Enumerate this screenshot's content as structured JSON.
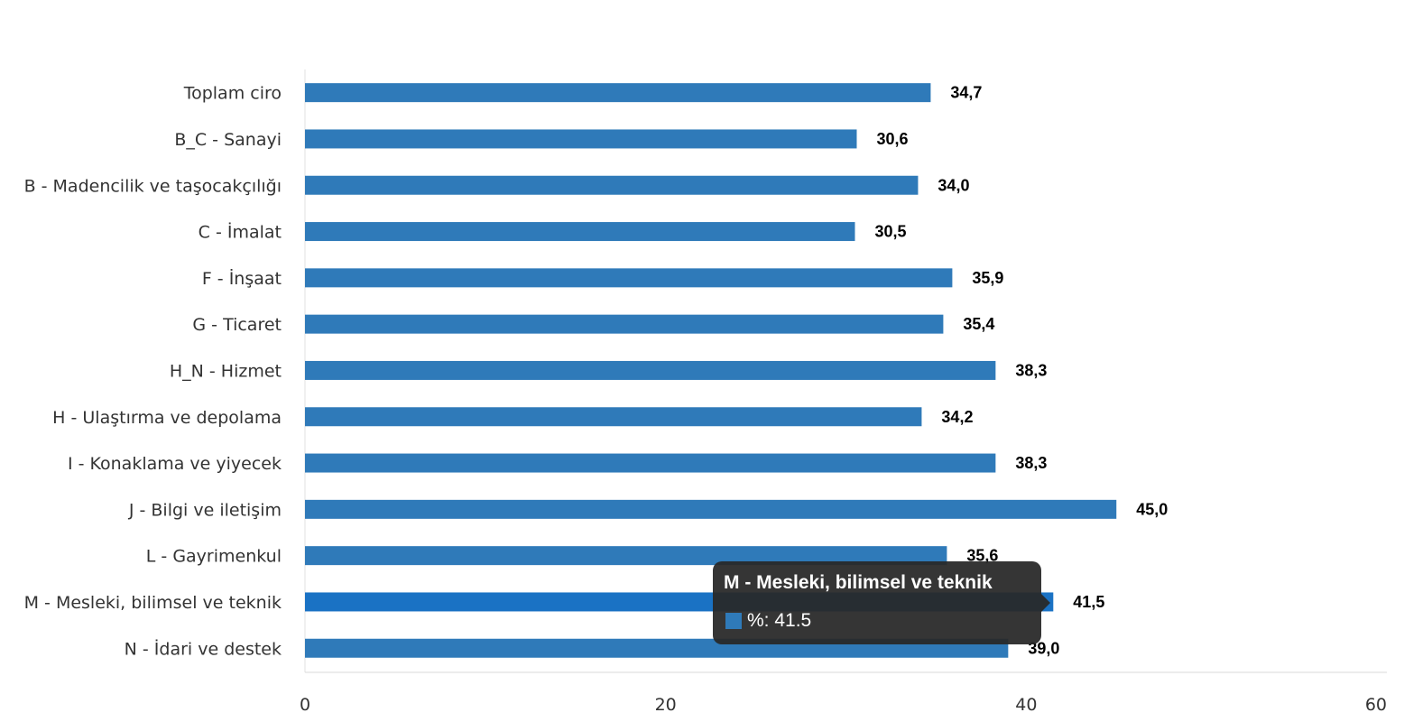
{
  "chart_data": {
    "type": "bar",
    "orientation": "horizontal",
    "categories": [
      "Toplam ciro",
      "B_C - Sanayi",
      "B - Madencilik ve taşocakçılığı",
      "C - İmalat",
      "F - İnşaat",
      "G - Ticaret",
      "H_N - Hizmet",
      "H - Ulaştırma ve depolama",
      "I - Konaklama ve yiyecek",
      "J - Bilgi ve iletişim",
      "L - Gayrimenkul",
      "M - Mesleki, bilimsel ve teknik",
      "N - İdari ve destek"
    ],
    "series": [
      {
        "name": "%",
        "values": [
          34.7,
          30.6,
          34.0,
          30.5,
          35.9,
          35.4,
          38.3,
          34.2,
          38.3,
          45.0,
          35.6,
          41.5,
          39.0
        ],
        "data_labels": [
          "34,7",
          "30,6",
          "34,0",
          "30,5",
          "35,9",
          "35,4",
          "38,3",
          "34,2",
          "38,3",
          "45,0",
          "35,6",
          "41,5",
          "39,0"
        ]
      }
    ],
    "xlim": [
      0,
      60
    ],
    "x_ticks": [
      0,
      20,
      40,
      60
    ],
    "x_tick_labels": [
      "0",
      "20",
      "40",
      "60"
    ],
    "grid": false,
    "legend": "none",
    "colors": {
      "bar": "#2f7ab9",
      "bar_highlight": "#1a72c4"
    },
    "highlighted_index": 11
  },
  "tooltip": {
    "title": "M - Mesleki, bilimsel ve teknik",
    "row_text": "%: 41.5"
  }
}
